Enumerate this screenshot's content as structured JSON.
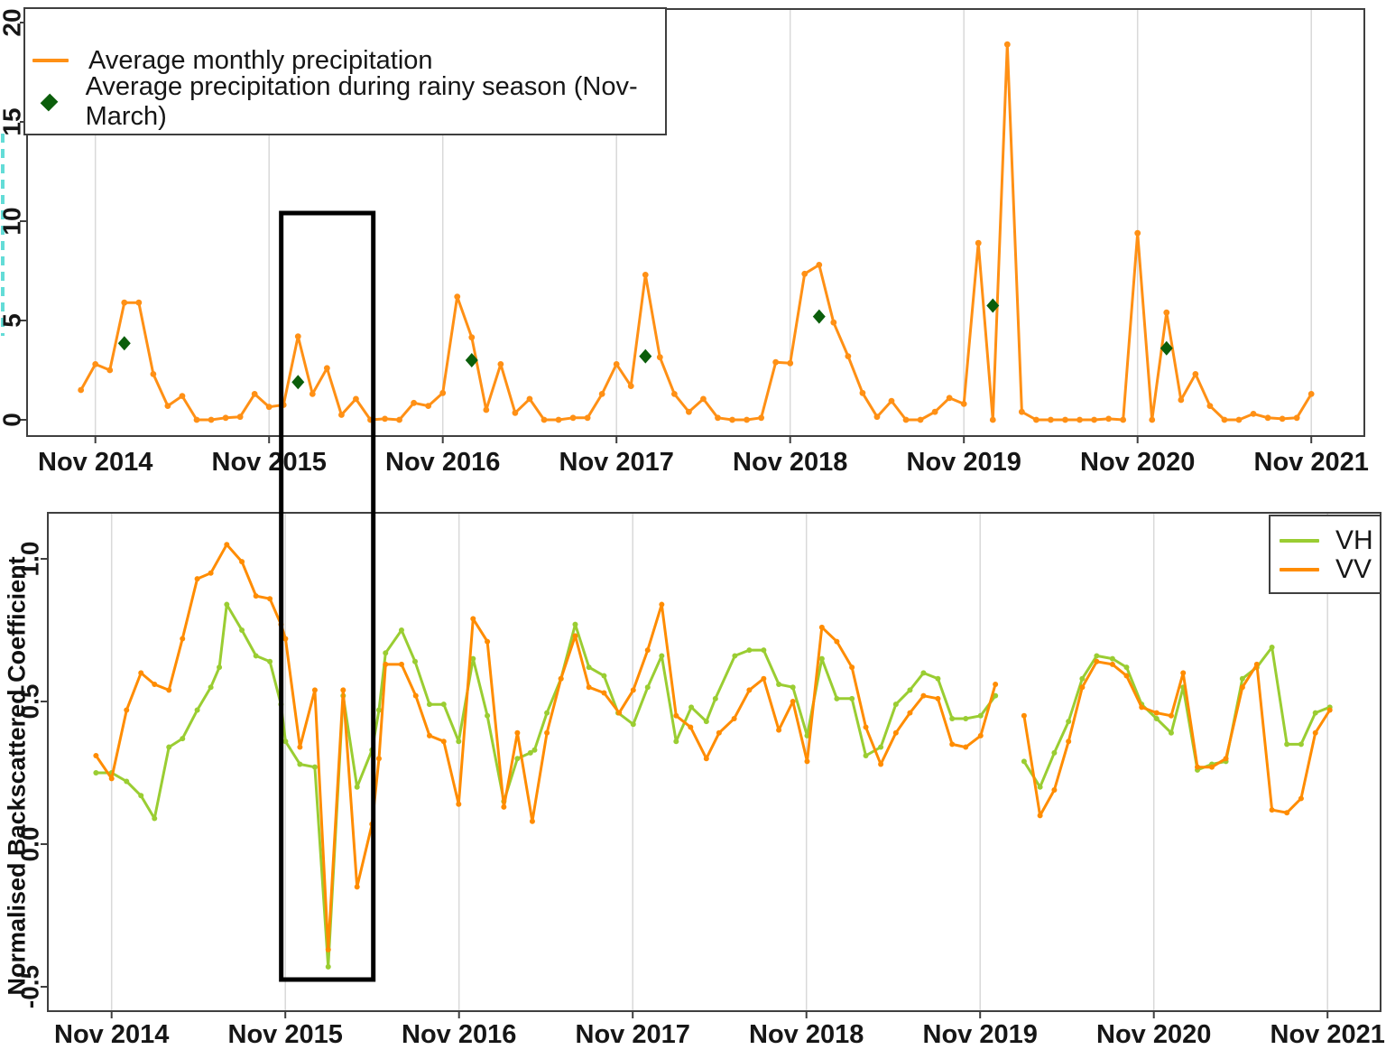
{
  "colors": {
    "precipitation_line": "#ff9015",
    "rainy_season_marker": "#0b5e0b",
    "vh_line": "#9acd32",
    "vv_line": "#ff8c00",
    "gridline": "#d9d9d9",
    "frame": "#3f3f3f",
    "text": "#161616",
    "clipped_ylabel_cyan": "#63dcd7",
    "highlight_box": "#000000"
  },
  "x_axis": {
    "tick_labels": [
      "Nov 2014",
      "Nov 2015",
      "Nov 2016",
      "Nov 2017",
      "Nov 2018",
      "Nov 2019",
      "Nov 2020",
      "Nov 2021"
    ]
  },
  "legend_top": {
    "items": [
      {
        "label": "Average monthly precipitation",
        "symbol": "orange-line"
      },
      {
        "label": "Average precipitation during rainy season (Nov-March)",
        "symbol": "green-diamond"
      }
    ]
  },
  "legend_vhvv": {
    "items": [
      {
        "label": "VH",
        "symbol": "green-line"
      },
      {
        "label": "VV",
        "symbol": "orange-line"
      }
    ]
  },
  "chart_data": [
    {
      "id": "precipitation-chart",
      "type": "line",
      "title": "",
      "xlabel": "",
      "ylabel": "",
      "x_tick_labels": [
        "Nov 2014",
        "Nov 2015",
        "Nov 2016",
        "Nov 2017",
        "Nov 2018",
        "Nov 2019",
        "Nov 2020",
        "Nov 2021"
      ],
      "y_ticks": [
        {
          "v": 0,
          "label": "0"
        },
        {
          "v": 5,
          "label": "5"
        },
        {
          "v": 10,
          "label": "10"
        },
        {
          "v": 15,
          "label": "15"
        },
        {
          "v": 20,
          "label": "20"
        }
      ],
      "ylim": [
        -0.8,
        20.7
      ],
      "grid": "vertical-at-each-Nov",
      "series": [
        {
          "name": "Average monthly precipitation",
          "type": "line",
          "color": "#ff9015",
          "start_month_from_nov2014": -1,
          "month_step": 1,
          "values": [
            1.5,
            2.8,
            2.5,
            5.9,
            5.9,
            2.3,
            0.7,
            1.2,
            0,
            0,
            0.1,
            0.15,
            1.3,
            0.65,
            0.75,
            4.2,
            1.3,
            2.6,
            0.25,
            1.05,
            0,
            0.05,
            0,
            0.85,
            0.7,
            1.35,
            6.2,
            4.15,
            0.5,
            2.8,
            0.35,
            1.05,
            0,
            0,
            0.1,
            0.1,
            1.3,
            2.8,
            1.7,
            7.3,
            3.15,
            1.3,
            0.4,
            1.05,
            0.1,
            0,
            0,
            0.1,
            2.9,
            2.85,
            7.35,
            7.8,
            4.9,
            3.2,
            1.35,
            0.15,
            0.95,
            0,
            0,
            0.4,
            1.1,
            0.8,
            8.9,
            0,
            18.9,
            0.4,
            0,
            0,
            0,
            0,
            0,
            0.05,
            0,
            9.4,
            0,
            5.4,
            1,
            2.3,
            0.7,
            0,
            0,
            0.3,
            0.1,
            0.05,
            0.1,
            1.3
          ]
        },
        {
          "name": "Average precipitation during rainy season (Nov-March)",
          "type": "scatter",
          "marker": "diamond",
          "color": "#0b5e0b",
          "months_from_nov2014": [
            2,
            14,
            26,
            38,
            50,
            62,
            74
          ],
          "values": [
            3.85,
            1.9,
            3.0,
            3.2,
            5.2,
            5.75,
            3.6
          ]
        }
      ]
    },
    {
      "id": "backscatter-chart",
      "type": "line",
      "title": "",
      "xlabel": "",
      "ylabel": "Normalised Backscattered Coefficient",
      "x_tick_labels": [
        "Nov 2014",
        "Nov 2015",
        "Nov 2016",
        "Nov 2017",
        "Nov 2018",
        "Nov 2019",
        "Nov 2020",
        "Nov 2021"
      ],
      "y_ticks": [
        {
          "v": -0.5,
          "label": "-0.5"
        },
        {
          "v": 0,
          "label": "0.0"
        },
        {
          "v": 0.5,
          "label": "0.5"
        },
        {
          "v": 1,
          "label": "1.0"
        }
      ],
      "ylim": [
        -0.6,
        1.15
      ],
      "grid": "vertical-at-each-Nov",
      "legend_position": "top-right",
      "series": [
        {
          "name": "VH",
          "type": "line",
          "color": "#9acd32",
          "x_unit": "years_since_nov2014",
          "points": [
            [
              -0.09,
              0.25
            ],
            [
              0,
              0.25
            ],
            [
              0.086,
              0.22
            ],
            [
              0.169,
              0.17
            ],
            [
              0.247,
              0.09
            ],
            [
              0.33,
              0.34
            ],
            [
              0.408,
              0.37
            ],
            [
              0.493,
              0.47
            ],
            [
              0.571,
              0.55
            ],
            [
              0.62,
              0.62
            ],
            [
              0.663,
              0.84
            ],
            [
              0.75,
              0.75
            ],
            [
              0.831,
              0.66
            ],
            [
              0.911,
              0.64
            ],
            [
              0.975,
              0.49
            ],
            [
              1.001,
              0.36
            ],
            [
              1.084,
              0.28
            ],
            [
              1.17,
              0.27
            ],
            [
              1.247,
              -0.43
            ],
            [
              1.333,
              0.52
            ],
            [
              1.413,
              0.2
            ],
            [
              1.499,
              0.33
            ],
            [
              1.539,
              0.47
            ],
            [
              1.577,
              0.67
            ],
            [
              1.669,
              0.75
            ],
            [
              1.747,
              0.64
            ],
            [
              1.83,
              0.49
            ],
            [
              1.912,
              0.49
            ],
            [
              1.998,
              0.36
            ],
            [
              2.081,
              0.65
            ],
            [
              2.163,
              0.45
            ],
            [
              2.258,
              0.15
            ],
            [
              2.336,
              0.3
            ],
            [
              2.411,
              0.32
            ],
            [
              2.435,
              0.33
            ],
            [
              2.506,
              0.46
            ],
            [
              2.587,
              0.58
            ],
            [
              2.669,
              0.77
            ],
            [
              2.748,
              0.62
            ],
            [
              2.835,
              0.59
            ],
            [
              2.916,
              0.46
            ],
            [
              3.003,
              0.42
            ],
            [
              3.086,
              0.55
            ],
            [
              3.167,
              0.66
            ],
            [
              3.25,
              0.36
            ],
            [
              3.337,
              0.48
            ],
            [
              3.424,
              0.43
            ],
            [
              3.476,
              0.51
            ],
            [
              3.588,
              0.66
            ],
            [
              3.671,
              0.68
            ],
            [
              3.754,
              0.68
            ],
            [
              3.841,
              0.56
            ],
            [
              3.922,
              0.55
            ],
            [
              4.004,
              0.38
            ],
            [
              4.089,
              0.65
            ],
            [
              4.175,
              0.51
            ],
            [
              4.262,
              0.51
            ],
            [
              4.342,
              0.31
            ],
            [
              4.428,
              0.34
            ],
            [
              4.515,
              0.49
            ],
            [
              4.596,
              0.54
            ],
            [
              4.674,
              0.6
            ],
            [
              4.757,
              0.58
            ],
            [
              4.839,
              0.44
            ],
            [
              4.917,
              0.44
            ],
            [
              5.003,
              0.45
            ],
            [
              5.088,
              0.52
            ],
            null,
            [
              5.253,
              0.29
            ],
            [
              5.345,
              0.2
            ],
            [
              5.427,
              0.32
            ],
            [
              5.509,
              0.43
            ],
            [
              5.588,
              0.58
            ],
            [
              5.671,
              0.66
            ],
            [
              5.762,
              0.65
            ],
            [
              5.843,
              0.62
            ],
            [
              5.93,
              0.49
            ],
            [
              6.016,
              0.44
            ],
            [
              6.1,
              0.39
            ],
            [
              6.169,
              0.55
            ],
            [
              6.251,
              0.26
            ],
            [
              6.334,
              0.28
            ],
            [
              6.415,
              0.29
            ],
            [
              6.51,
              0.58
            ],
            [
              6.593,
              0.62
            ],
            [
              6.68,
              0.69
            ],
            [
              6.766,
              0.35
            ],
            [
              6.848,
              0.35
            ],
            [
              6.93,
              0.46
            ],
            [
              7.013,
              0.48
            ]
          ]
        },
        {
          "name": "VV",
          "type": "line",
          "color": "#ff8c00",
          "x_unit": "years_since_nov2014",
          "points": [
            [
              -0.09,
              0.31
            ],
            [
              0,
              0.23
            ],
            [
              0.086,
              0.47
            ],
            [
              0.169,
              0.6
            ],
            [
              0.247,
              0.56
            ],
            [
              0.33,
              0.54
            ],
            [
              0.408,
              0.72
            ],
            [
              0.493,
              0.93
            ],
            [
              0.571,
              0.95
            ],
            [
              0.663,
              1.05
            ],
            [
              0.75,
              0.99
            ],
            [
              0.831,
              0.87
            ],
            [
              0.911,
              0.86
            ],
            [
              0.975,
              0.77
            ],
            [
              1.001,
              0.72
            ],
            [
              1.084,
              0.34
            ],
            [
              1.17,
              0.54
            ],
            [
              1.247,
              -0.37
            ],
            [
              1.333,
              0.54
            ],
            [
              1.413,
              -0.15
            ],
            [
              1.499,
              0.07
            ],
            [
              1.539,
              0.3
            ],
            [
              1.577,
              0.63
            ],
            [
              1.669,
              0.63
            ],
            [
              1.751,
              0.52
            ],
            [
              1.83,
              0.38
            ],
            [
              1.912,
              0.36
            ],
            [
              1.998,
              0.14
            ],
            [
              2.081,
              0.79
            ],
            [
              2.163,
              0.71
            ],
            [
              2.258,
              0.13
            ],
            [
              2.336,
              0.39
            ],
            [
              2.422,
              0.08
            ],
            [
              2.506,
              0.39
            ],
            [
              2.587,
              0.58
            ],
            [
              2.669,
              0.73
            ],
            [
              2.748,
              0.55
            ],
            [
              2.835,
              0.53
            ],
            [
              2.922,
              0.46
            ],
            [
              3.003,
              0.54
            ],
            [
              3.086,
              0.68
            ],
            [
              3.167,
              0.84
            ],
            [
              3.25,
              0.45
            ],
            [
              3.333,
              0.41
            ],
            [
              3.424,
              0.3
            ],
            [
              3.497,
              0.39
            ],
            [
              3.584,
              0.44
            ],
            [
              3.671,
              0.54
            ],
            [
              3.754,
              0.58
            ],
            [
              3.841,
              0.4
            ],
            [
              3.922,
              0.5
            ],
            [
              4.004,
              0.29
            ],
            [
              4.089,
              0.76
            ],
            [
              4.175,
              0.71
            ],
            [
              4.262,
              0.62
            ],
            [
              4.342,
              0.41
            ],
            [
              4.428,
              0.28
            ],
            [
              4.515,
              0.39
            ],
            [
              4.596,
              0.46
            ],
            [
              4.674,
              0.52
            ],
            [
              4.757,
              0.51
            ],
            [
              4.839,
              0.35
            ],
            [
              4.917,
              0.34
            ],
            [
              5.003,
              0.38
            ],
            [
              5.088,
              0.56
            ],
            null,
            [
              5.253,
              0.45
            ],
            [
              5.345,
              0.1
            ],
            [
              5.427,
              0.19
            ],
            [
              5.509,
              0.36
            ],
            [
              5.588,
              0.55
            ],
            [
              5.671,
              0.64
            ],
            [
              5.762,
              0.63
            ],
            [
              5.843,
              0.59
            ],
            [
              5.93,
              0.48
            ],
            [
              6.016,
              0.46
            ],
            [
              6.1,
              0.45
            ],
            [
              6.169,
              0.6
            ],
            [
              6.251,
              0.27
            ],
            [
              6.334,
              0.27
            ],
            [
              6.415,
              0.3
            ],
            [
              6.51,
              0.55
            ],
            [
              6.593,
              0.63
            ],
            [
              6.68,
              0.12
            ],
            [
              6.766,
              0.11
            ],
            [
              6.848,
              0.16
            ],
            [
              6.93,
              0.39
            ],
            [
              7.013,
              0.47
            ]
          ]
        }
      ]
    }
  ],
  "highlight_box": {
    "description": "black rectangle spanning both charts around Dec 2015 - Jun 2016",
    "x_years": [
      1.07,
      1.6
    ],
    "color": "#000000"
  }
}
